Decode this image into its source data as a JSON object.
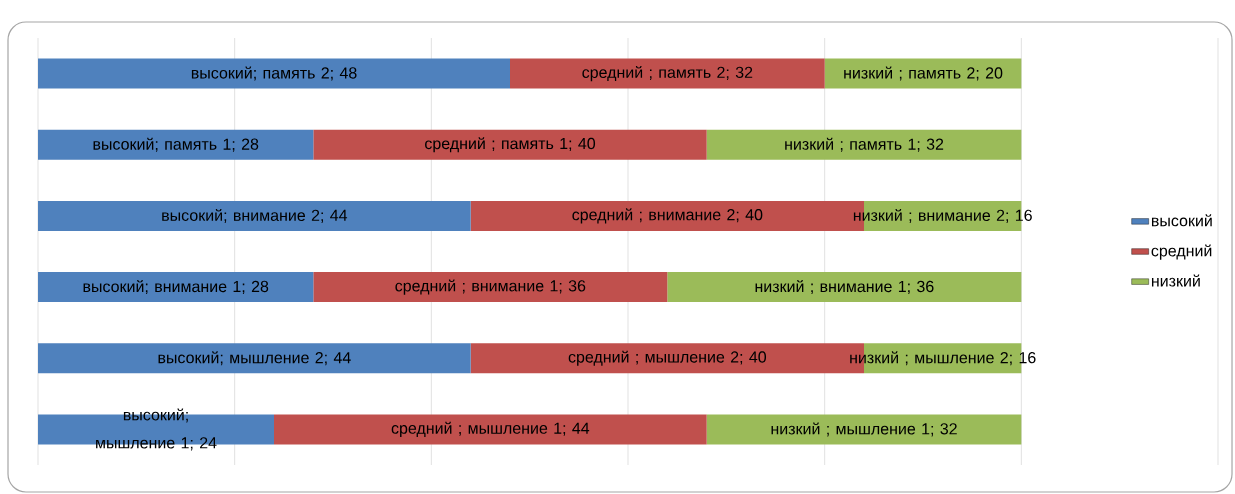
{
  "chart_data": {
    "type": "bar",
    "orientation": "horizontal",
    "stacked": true,
    "categories": [
      null,
      null,
      null,
      null,
      null,
      null
    ],
    "series": [
      {
        "name": "высокий",
        "color": "#4f81bd",
        "values": [
          48,
          28,
          44,
          28,
          44,
          24
        ],
        "value_labels": [
          "высокий; память 2; 48",
          "высокий; память 1; 28",
          "высокий; внимание 2; 44",
          "высокий; внимание 1; 28",
          "высокий; мышление 2; 44",
          "высокий; мышление 1; 24"
        ]
      },
      {
        "name": "средний",
        "color": "#c0504d",
        "values": [
          32,
          40,
          40,
          36,
          40,
          44
        ],
        "value_labels": [
          "средний ; память 2; 32",
          "средний ; память 1; 40",
          "средний ; внимание 2; 40",
          "средний ; внимание 1; 36",
          "средний ; мышление 2; 40",
          "средний ; мышление 1; 44"
        ]
      },
      {
        "name": "низкий",
        "color": "#9bbb59",
        "values": [
          20,
          32,
          16,
          36,
          16,
          32
        ],
        "value_labels": [
          "низкий ; память 2; 20",
          "низкий ; память 1; 32",
          "низкий ; внимание 2; 16",
          "низкий ; внимание 1; 36",
          "низкий ; мышление 2; 16",
          "низкий ; мышление 1; 32"
        ]
      }
    ],
    "xlim": [
      0,
      120
    ],
    "xticks": [
      {
        "value": 0,
        "label": null
      },
      {
        "value": 20,
        "label": null
      },
      {
        "value": 40,
        "label": null
      },
      {
        "value": 60,
        "label": null
      },
      {
        "value": 80,
        "label": null
      },
      {
        "value": 100,
        "label": null
      },
      {
        "value": 120,
        "label": null
      }
    ],
    "grid": "x",
    "legend": "right"
  }
}
